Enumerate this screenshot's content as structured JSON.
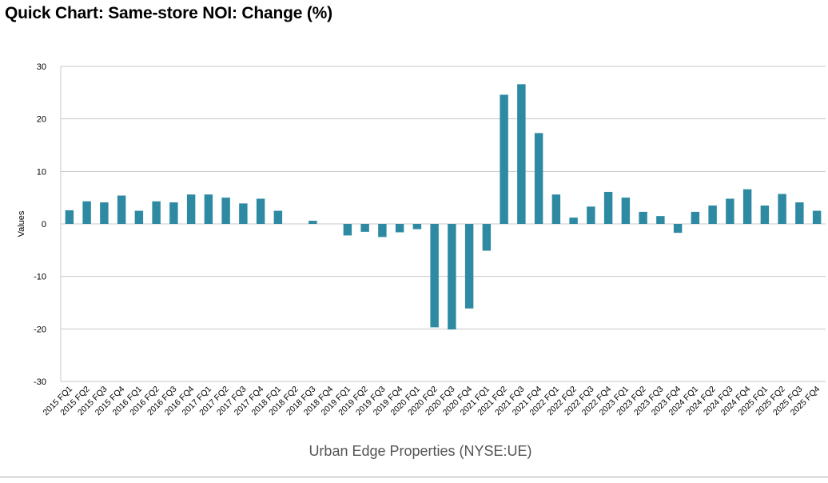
{
  "chart_data": {
    "type": "bar",
    "title": "Quick Chart: Same-store NOI: Change (%)",
    "xlabel": "Urban Edge Properties (NYSE:UE)",
    "ylabel": "Values",
    "ylim": [
      -30,
      30
    ],
    "yticks": [
      30,
      20,
      10,
      0,
      -10,
      -20,
      -30
    ],
    "yticklabels": [
      "30",
      "20",
      "10",
      "0",
      "-10",
      "-20",
      "-30"
    ],
    "grid": true,
    "legend": "none",
    "bar_color": "#2e8aa2",
    "categories": [
      "2015 FQ1",
      "2015 FQ2",
      "2015 FQ3",
      "2015 FQ4",
      "2016 FQ1",
      "2016 FQ2",
      "2016 FQ3",
      "2016 FQ4",
      "2017 FQ1",
      "2017 FQ2",
      "2017 FQ3",
      "2017 FQ4",
      "2018 FQ1",
      "2018 FQ2",
      "2018 FQ3",
      "2018 FQ4",
      "2019 FQ1",
      "2019 FQ2",
      "2019 FQ3",
      "2019 FQ4",
      "2020 FQ1",
      "2020 FQ2",
      "2020 FQ3",
      "2020 FQ4",
      "2021 FQ1",
      "2021 FQ2",
      "2021 FQ3",
      "2021 FQ4",
      "2022 FQ1",
      "2022 FQ2",
      "2022 FQ3",
      "2022 FQ4",
      "2023 FQ1",
      "2023 FQ2",
      "2023 FQ3",
      "2023 FQ4",
      "2024 FQ1",
      "2024 FQ2",
      "2024 FQ3",
      "2024 FQ4",
      "2025 FQ1",
      "2025 FQ2",
      "2025 FQ3",
      "2025 FQ4"
    ],
    "values": [
      2.6,
      4.3,
      4.1,
      5.4,
      2.5,
      4.3,
      4.1,
      5.6,
      5.6,
      5.0,
      3.9,
      4.8,
      2.5,
      0.0,
      0.6,
      0.0,
      -2.2,
      -1.5,
      -2.5,
      -1.6,
      -1.0,
      -19.7,
      -20.1,
      -16.1,
      -5.1,
      24.6,
      26.6,
      17.3,
      5.6,
      1.2,
      3.3,
      6.1,
      5.0,
      2.3,
      1.5,
      -1.7,
      2.3,
      3.5,
      4.8,
      6.6,
      3.5,
      5.7,
      4.1,
      2.5
    ]
  }
}
